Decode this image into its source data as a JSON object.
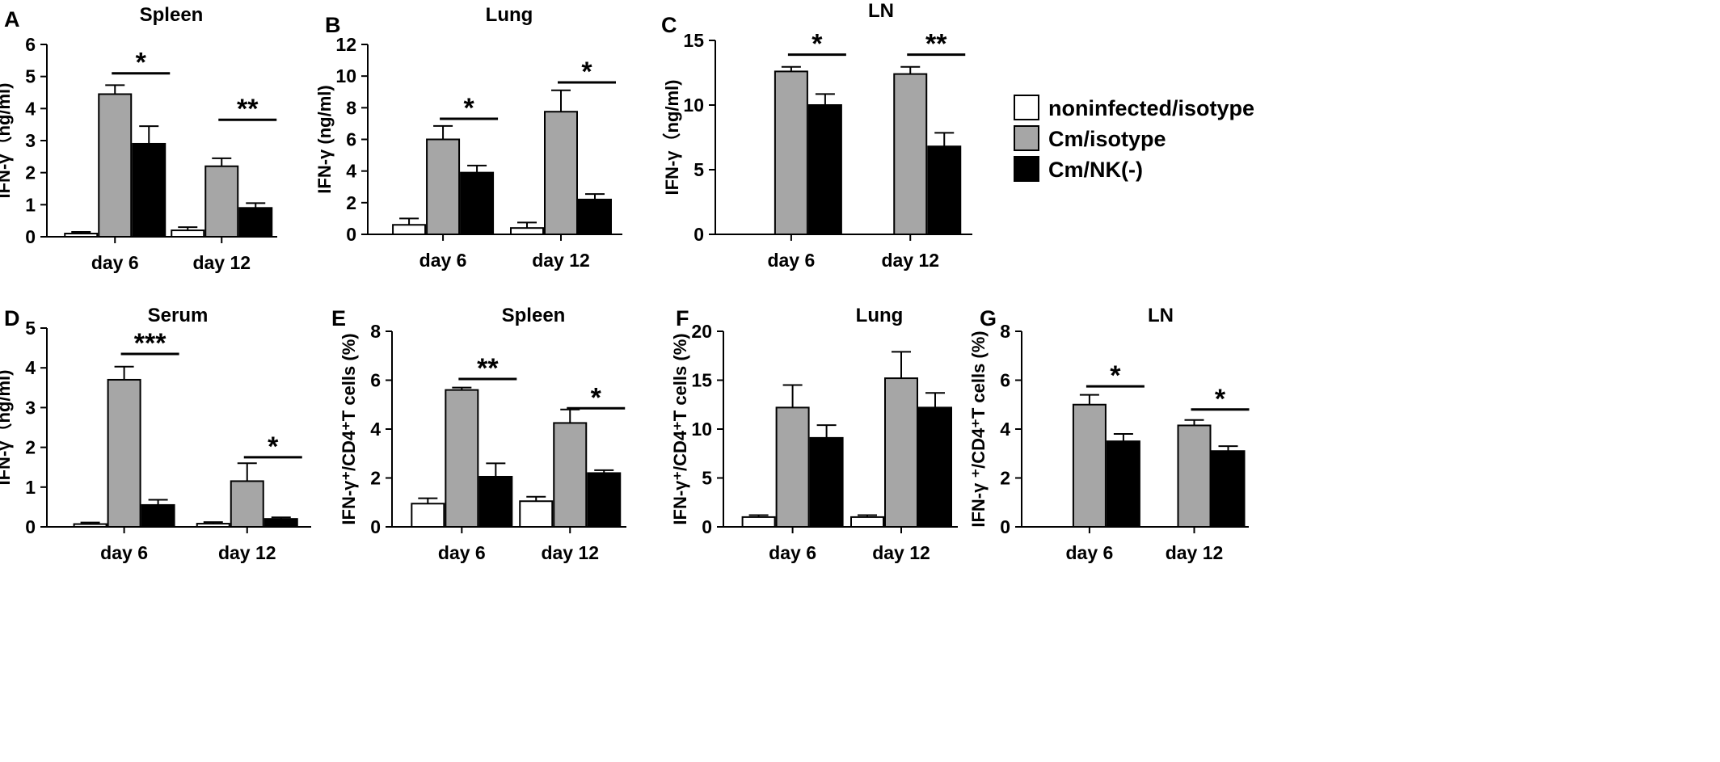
{
  "colors": {
    "noninfected": "#ffffff",
    "cm_isotype": "#a6a6a6",
    "cm_nk": "#000000"
  },
  "legend": {
    "items": [
      {
        "label": "noninfected/isotype",
        "color": "#ffffff"
      },
      {
        "label": "Cm/isotype",
        "color": "#a6a6a6"
      },
      {
        "label": "Cm/NK(-)",
        "color": "#000000"
      }
    ]
  },
  "chart_data": [
    {
      "id": "A",
      "type": "bar",
      "title": "Spleen",
      "ylabel": "IFN-γ（ng/ml)",
      "ylim": [
        0,
        6
      ],
      "ticks": [
        0,
        1,
        2,
        3,
        4,
        5,
        6
      ],
      "categories": [
        "day 6",
        "day 12"
      ],
      "series": [
        {
          "name": "noninfected/isotype",
          "values": [
            0.1,
            0.2
          ],
          "errors": [
            0.05,
            0.1
          ]
        },
        {
          "name": "Cm/isotype",
          "values": [
            4.45,
            2.2
          ],
          "errors": [
            0.28,
            0.25
          ]
        },
        {
          "name": "Cm/NK(-)",
          "values": [
            2.9,
            0.9
          ],
          "errors": [
            0.55,
            0.15
          ]
        }
      ],
      "significance": [
        {
          "category": 0,
          "label": "*",
          "y": 5.1
        },
        {
          "category": 1,
          "label": "**",
          "y": 3.65
        }
      ]
    },
    {
      "id": "B",
      "type": "bar",
      "title": "Lung",
      "ylabel": "IFN-γ (ng/ml)",
      "ylim": [
        0,
        12
      ],
      "ticks": [
        0,
        2,
        4,
        6,
        8,
        10,
        12
      ],
      "categories": [
        "day 6",
        "day 12"
      ],
      "series": [
        {
          "name": "noninfected/isotype",
          "values": [
            0.6,
            0.4
          ],
          "errors": [
            0.4,
            0.35
          ]
        },
        {
          "name": "Cm/isotype",
          "values": [
            6.0,
            7.75
          ],
          "errors": [
            0.85,
            1.35
          ]
        },
        {
          "name": "Cm/NK(-)",
          "values": [
            3.9,
            2.2
          ],
          "errors": [
            0.45,
            0.35
          ]
        }
      ],
      "significance": [
        {
          "category": 0,
          "label": "*",
          "y": 7.3
        },
        {
          "category": 1,
          "label": "*",
          "y": 9.6
        }
      ]
    },
    {
      "id": "C",
      "type": "bar",
      "title": "LN",
      "ylabel": "IFN-γ（ng/ml)",
      "ylim": [
        0,
        15
      ],
      "ticks": [
        0,
        5,
        10,
        15
      ],
      "categories": [
        "day 6",
        "day 12"
      ],
      "series": [
        {
          "name": "noninfected/isotype",
          "values": [
            null,
            null
          ],
          "errors": [
            null,
            null
          ]
        },
        {
          "name": "Cm/isotype",
          "values": [
            12.6,
            12.4
          ],
          "errors": [
            0.35,
            0.55
          ]
        },
        {
          "name": "Cm/NK(-)",
          "values": [
            10.0,
            6.8
          ],
          "errors": [
            0.85,
            1.05
          ]
        }
      ],
      "significance": [
        {
          "category": 0,
          "label": "*",
          "y": 13.9
        },
        {
          "category": 1,
          "label": "**",
          "y": 13.9
        }
      ]
    },
    {
      "id": "D",
      "type": "bar",
      "title": "Serum",
      "ylabel": "IFN-γ（ng/ml)",
      "ylim": [
        0,
        5
      ],
      "ticks": [
        0,
        1,
        2,
        3,
        4,
        5
      ],
      "categories": [
        "day 6",
        "day 12"
      ],
      "series": [
        {
          "name": "noninfected/isotype",
          "values": [
            0.07,
            0.08
          ],
          "errors": [
            0.04,
            0.04
          ]
        },
        {
          "name": "Cm/isotype",
          "values": [
            3.7,
            1.15
          ],
          "errors": [
            0.33,
            0.45
          ]
        },
        {
          "name": "Cm/NK(-)",
          "values": [
            0.55,
            0.2
          ],
          "errors": [
            0.13,
            0.04
          ]
        }
      ],
      "significance": [
        {
          "category": 0,
          "label": "***",
          "y": 4.35
        },
        {
          "category": 1,
          "label": "*",
          "y": 1.75
        }
      ]
    },
    {
      "id": "E",
      "type": "bar",
      "title": "Spleen",
      "ylabel": "IFN-γ⁺/CD4⁺T cells (%)",
      "ylim": [
        0,
        8
      ],
      "ticks": [
        0,
        2,
        4,
        6,
        8
      ],
      "categories": [
        "day 6",
        "day 12"
      ],
      "series": [
        {
          "name": "noninfected/isotype",
          "values": [
            0.95,
            1.05
          ],
          "errors": [
            0.22,
            0.18
          ]
        },
        {
          "name": "Cm/isotype",
          "values": [
            5.6,
            4.25
          ],
          "errors": [
            0.1,
            0.55
          ]
        },
        {
          "name": "Cm/NK(-)",
          "values": [
            2.05,
            2.2
          ],
          "errors": [
            0.55,
            0.12
          ]
        }
      ],
      "significance": [
        {
          "category": 0,
          "label": "**",
          "y": 6.05
        },
        {
          "category": 1,
          "label": "*",
          "y": 4.85
        }
      ]
    },
    {
      "id": "F",
      "type": "bar",
      "title": "Lung",
      "ylabel": "IFN-γ⁺/CD4⁺T cells (%)",
      "ylim": [
        0,
        20
      ],
      "ticks": [
        0,
        5,
        10,
        15,
        20
      ],
      "categories": [
        "day 6",
        "day 12"
      ],
      "series": [
        {
          "name": "noninfected/isotype",
          "values": [
            1.0,
            1.0
          ],
          "errors": [
            0.2,
            0.2
          ]
        },
        {
          "name": "Cm/isotype",
          "values": [
            12.2,
            15.2
          ],
          "errors": [
            2.3,
            2.7
          ]
        },
        {
          "name": "Cm/NK(-)",
          "values": [
            9.1,
            12.2
          ],
          "errors": [
            1.3,
            1.5
          ]
        }
      ],
      "significance": []
    },
    {
      "id": "G",
      "type": "bar",
      "title": "LN",
      "ylabel": "IFN-γ ⁺/CD4⁺T cells (%)",
      "ylim": [
        0,
        8
      ],
      "ticks": [
        0,
        2,
        4,
        6,
        8
      ],
      "categories": [
        "day 6",
        "day 12"
      ],
      "series": [
        {
          "name": "noninfected/isotype",
          "values": [
            null,
            null
          ],
          "errors": [
            null,
            null
          ]
        },
        {
          "name": "Cm/isotype",
          "values": [
            5.0,
            4.15
          ],
          "errors": [
            0.4,
            0.22
          ]
        },
        {
          "name": "Cm/NK(-)",
          "values": [
            3.5,
            3.1
          ],
          "errors": [
            0.3,
            0.2
          ]
        }
      ],
      "significance": [
        {
          "category": 0,
          "label": "*",
          "y": 5.75
        },
        {
          "category": 1,
          "label": "*",
          "y": 4.8
        }
      ]
    }
  ]
}
